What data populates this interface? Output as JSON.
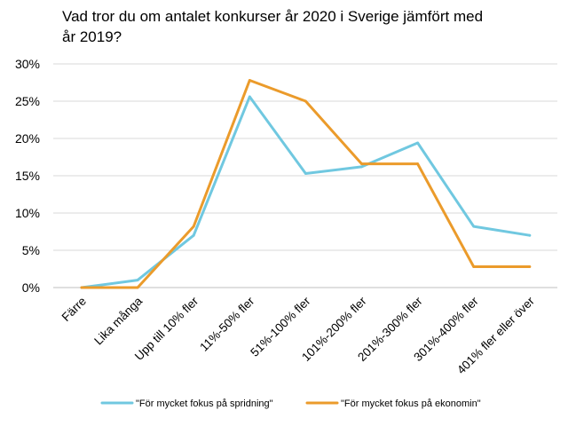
{
  "chart_data": {
    "type": "line",
    "title_lines": [
      "Vad tror du om antalet konkurser år 2020 i Sverige jämfört med",
      "år 2019?"
    ],
    "categories": [
      "Färre",
      "Lika många",
      "Upp till 10% fler",
      "11%-50% fler",
      "51%-100% fler",
      "101%-200% fler",
      "201%-300% fler",
      "301%-400% fler",
      "401% fler eller över"
    ],
    "y_ticks": [
      "0%",
      "5%",
      "10%",
      "15%",
      "20%",
      "25%",
      "30%"
    ],
    "ylim": [
      0,
      30
    ],
    "y_unit": "%",
    "grid": true,
    "legend_position": "bottom",
    "series": [
      {
        "name": "\"För mycket fokus på spridning\"",
        "color": "#70c8e0",
        "values": [
          0,
          1,
          7,
          25.6,
          15.3,
          16.2,
          19.4,
          8.2,
          7
        ]
      },
      {
        "name": "\"För mycket fokus på ekonomin\"",
        "color": "#eb9b2b",
        "values": [
          0,
          0,
          8.2,
          27.8,
          25,
          16.6,
          16.6,
          2.8,
          2.8
        ]
      }
    ]
  }
}
